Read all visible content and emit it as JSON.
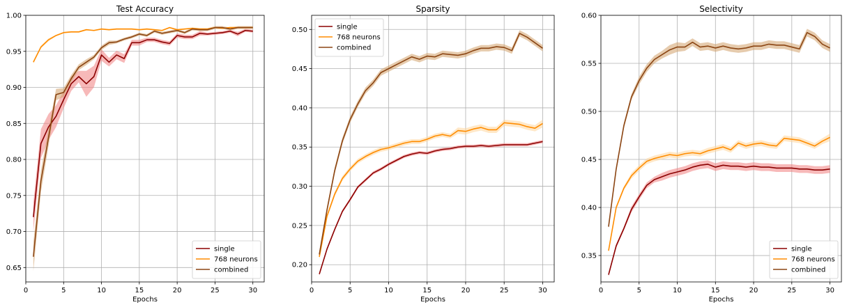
{
  "colors": {
    "single": "#8b0000",
    "neurons768": "#ff8c00",
    "combined": "#8b4513",
    "single_band": "#f08080",
    "neurons768_band": "#ffd59a",
    "combined_band": "#d2a06a",
    "grid": "#b0b0b0"
  },
  "chart_data": [
    {
      "type": "line",
      "title": "Test Accuracy",
      "xlabel": "Epochs",
      "ylabel": "",
      "xlim": [
        0,
        31.5
      ],
      "ylim": [
        0.63,
        1.0
      ],
      "xticks": [
        0,
        5,
        10,
        15,
        20,
        25,
        30
      ],
      "xtick_labels": [
        "0",
        "5",
        "10",
        "15",
        "20",
        "25",
        "30"
      ],
      "yticks": [
        0.65,
        0.7,
        0.75,
        0.8,
        0.85,
        0.9,
        0.95,
        1.0
      ],
      "ytick_labels": [
        "0.65",
        "0.70",
        "0.75",
        "0.80",
        "0.85",
        "0.90",
        "0.95",
        "1.00"
      ],
      "grid": true,
      "legend_position": "lower-right",
      "series": [
        {
          "name": "single",
          "key": "single",
          "x": [
            1,
            2,
            3,
            4,
            5,
            6,
            7,
            8,
            9,
            10,
            11,
            12,
            13,
            14,
            15,
            16,
            17,
            18,
            19,
            20,
            21,
            22,
            23,
            24,
            25,
            26,
            27,
            28,
            29,
            30
          ],
          "y": [
            0.72,
            0.822,
            0.845,
            0.86,
            0.883,
            0.905,
            0.915,
            0.905,
            0.915,
            0.945,
            0.935,
            0.945,
            0.94,
            0.962,
            0.962,
            0.966,
            0.966,
            0.963,
            0.961,
            0.972,
            0.97,
            0.97,
            0.975,
            0.974,
            0.975,
            0.976,
            0.978,
            0.974,
            0.979,
            0.978
          ],
          "band": [
            0.02,
            0.02,
            0.018,
            0.015,
            0.012,
            0.01,
            0.008,
            0.018,
            0.015,
            0.008,
            0.006,
            0.006,
            0.006,
            0.004,
            0.004,
            0.003,
            0.003,
            0.003,
            0.003,
            0.003,
            0.003,
            0.003,
            0.003,
            0.002,
            0.002,
            0.002,
            0.002,
            0.003,
            0.002,
            0.002
          ]
        },
        {
          "name": "768 neurons",
          "key": "neurons768",
          "x": [
            1,
            2,
            3,
            4,
            5,
            6,
            7,
            8,
            9,
            10,
            11,
            12,
            13,
            14,
            15,
            16,
            17,
            18,
            19,
            20,
            21,
            22,
            23,
            24,
            25,
            26,
            27,
            28,
            29,
            30
          ],
          "y": [
            0.935,
            0.956,
            0.966,
            0.972,
            0.976,
            0.977,
            0.977,
            0.98,
            0.979,
            0.981,
            0.98,
            0.981,
            0.981,
            0.981,
            0.98,
            0.981,
            0.98,
            0.979,
            0.983,
            0.98,
            0.981,
            0.982,
            0.981,
            0.981,
            0.983,
            0.982,
            0.983,
            0.983,
            0.983,
            0.983
          ],
          "band": [
            0.002,
            0.002,
            0.002,
            0.001,
            0.001,
            0.001,
            0.001,
            0.001,
            0.001,
            0.001,
            0.001,
            0.001,
            0.001,
            0.001,
            0.001,
            0.001,
            0.001,
            0.001,
            0.001,
            0.001,
            0.001,
            0.001,
            0.001,
            0.001,
            0.001,
            0.001,
            0.001,
            0.001,
            0.001,
            0.001
          ]
        },
        {
          "name": "combined",
          "key": "combined",
          "x": [
            1,
            2,
            3,
            4,
            5,
            6,
            7,
            8,
            9,
            10,
            11,
            12,
            13,
            14,
            15,
            16,
            17,
            18,
            19,
            20,
            21,
            22,
            23,
            24,
            25,
            26,
            27,
            28,
            29,
            30
          ],
          "y": [
            0.665,
            0.77,
            0.83,
            0.89,
            0.893,
            0.912,
            0.928,
            0.935,
            0.942,
            0.955,
            0.962,
            0.963,
            0.967,
            0.97,
            0.974,
            0.972,
            0.978,
            0.975,
            0.977,
            0.979,
            0.976,
            0.981,
            0.98,
            0.98,
            0.983,
            0.983,
            0.981,
            0.983,
            0.983,
            0.983
          ],
          "band": [
            0.02,
            0.015,
            0.012,
            0.008,
            0.006,
            0.005,
            0.004,
            0.004,
            0.003,
            0.003,
            0.003,
            0.002,
            0.002,
            0.002,
            0.002,
            0.002,
            0.002,
            0.002,
            0.002,
            0.002,
            0.002,
            0.002,
            0.002,
            0.002,
            0.002,
            0.002,
            0.002,
            0.002,
            0.002,
            0.002
          ]
        }
      ]
    },
    {
      "type": "line",
      "title": "Sparsity",
      "xlabel": "Epochs",
      "ylabel": "",
      "xlim": [
        0,
        31.5
      ],
      "ylim": [
        0.178,
        0.518
      ],
      "xticks": [
        0,
        5,
        10,
        15,
        20,
        25,
        30
      ],
      "xtick_labels": [
        "0",
        "5",
        "10",
        "15",
        "20",
        "25",
        "30"
      ],
      "yticks": [
        0.2,
        0.25,
        0.3,
        0.35,
        0.4,
        0.45,
        0.5
      ],
      "ytick_labels": [
        "0.20",
        "0.25",
        "0.30",
        "0.35",
        "0.40",
        "0.45",
        "0.50"
      ],
      "grid": true,
      "legend_position": "upper-left",
      "series": [
        {
          "name": "single",
          "key": "single",
          "x": [
            1,
            2,
            3,
            4,
            5,
            6,
            7,
            8,
            9,
            10,
            11,
            12,
            13,
            14,
            15,
            16,
            17,
            18,
            19,
            20,
            21,
            22,
            23,
            24,
            25,
            26,
            27,
            28,
            29,
            30
          ],
          "y": [
            0.188,
            0.22,
            0.245,
            0.268,
            0.283,
            0.299,
            0.308,
            0.317,
            0.322,
            0.328,
            0.333,
            0.338,
            0.341,
            0.343,
            0.342,
            0.345,
            0.347,
            0.348,
            0.35,
            0.351,
            0.351,
            0.352,
            0.351,
            0.352,
            0.353,
            0.353,
            0.353,
            0.353,
            0.355,
            0.357
          ],
          "band": [
            0.002,
            0.002,
            0.002,
            0.002,
            0.002,
            0.002,
            0.002,
            0.002,
            0.002,
            0.002,
            0.002,
            0.002,
            0.002,
            0.002,
            0.002,
            0.002,
            0.002,
            0.002,
            0.002,
            0.002,
            0.002,
            0.002,
            0.002,
            0.002,
            0.002,
            0.002,
            0.002,
            0.002,
            0.002,
            0.002
          ]
        },
        {
          "name": "768 neurons",
          "key": "neurons768",
          "x": [
            1,
            2,
            3,
            4,
            5,
            6,
            7,
            8,
            9,
            10,
            11,
            12,
            13,
            14,
            15,
            16,
            17,
            18,
            19,
            20,
            21,
            22,
            23,
            24,
            25,
            26,
            27,
            28,
            29,
            30
          ],
          "y": [
            0.21,
            0.262,
            0.29,
            0.31,
            0.322,
            0.332,
            0.338,
            0.343,
            0.347,
            0.349,
            0.352,
            0.355,
            0.357,
            0.357,
            0.36,
            0.364,
            0.366,
            0.364,
            0.371,
            0.37,
            0.373,
            0.375,
            0.372,
            0.372,
            0.381,
            0.38,
            0.379,
            0.376,
            0.374,
            0.38
          ],
          "band": [
            0.003,
            0.003,
            0.003,
            0.003,
            0.003,
            0.003,
            0.003,
            0.003,
            0.003,
            0.003,
            0.003,
            0.003,
            0.003,
            0.003,
            0.003,
            0.003,
            0.003,
            0.003,
            0.004,
            0.004,
            0.004,
            0.004,
            0.004,
            0.004,
            0.004,
            0.004,
            0.004,
            0.004,
            0.004,
            0.005
          ]
        },
        {
          "name": "combined",
          "key": "combined",
          "x": [
            1,
            2,
            3,
            4,
            5,
            6,
            7,
            8,
            9,
            10,
            11,
            12,
            13,
            14,
            15,
            16,
            17,
            18,
            19,
            20,
            21,
            22,
            23,
            24,
            25,
            26,
            27,
            28,
            29,
            30
          ],
          "y": [
            0.213,
            0.27,
            0.32,
            0.358,
            0.385,
            0.405,
            0.422,
            0.432,
            0.445,
            0.45,
            0.455,
            0.46,
            0.465,
            0.462,
            0.466,
            0.465,
            0.469,
            0.468,
            0.467,
            0.469,
            0.473,
            0.476,
            0.476,
            0.478,
            0.477,
            0.473,
            0.495,
            0.49,
            0.483,
            0.476
          ],
          "band": [
            0.004,
            0.004,
            0.004,
            0.004,
            0.004,
            0.004,
            0.004,
            0.004,
            0.004,
            0.004,
            0.004,
            0.004,
            0.004,
            0.004,
            0.004,
            0.004,
            0.004,
            0.004,
            0.004,
            0.004,
            0.004,
            0.004,
            0.004,
            0.004,
            0.004,
            0.004,
            0.004,
            0.004,
            0.004,
            0.004
          ]
        }
      ]
    },
    {
      "type": "line",
      "title": "Selectivity",
      "xlabel": "Epochs",
      "ylabel": "",
      "xlim": [
        0,
        31.5
      ],
      "ylim": [
        0.3225,
        0.6
      ],
      "xticks": [
        0,
        5,
        10,
        15,
        20,
        25,
        30
      ],
      "xtick_labels": [
        "0",
        "5",
        "10",
        "15",
        "20",
        "25",
        "30"
      ],
      "yticks": [
        0.35,
        0.4,
        0.45,
        0.5,
        0.55,
        0.6
      ],
      "ytick_labels": [
        "0.35",
        "0.40",
        "0.45",
        "0.50",
        "0.55",
        "0.60"
      ],
      "grid": true,
      "legend_position": "lower-right",
      "series": [
        {
          "name": "single",
          "key": "single",
          "x": [
            1,
            2,
            3,
            4,
            5,
            6,
            7,
            8,
            9,
            10,
            11,
            12,
            13,
            14,
            15,
            16,
            17,
            18,
            19,
            20,
            21,
            22,
            23,
            24,
            25,
            26,
            27,
            28,
            29,
            30
          ],
          "y": [
            0.33,
            0.36,
            0.378,
            0.398,
            0.411,
            0.423,
            0.429,
            0.432,
            0.435,
            0.437,
            0.439,
            0.442,
            0.444,
            0.445,
            0.442,
            0.444,
            0.443,
            0.443,
            0.442,
            0.443,
            0.442,
            0.442,
            0.441,
            0.441,
            0.441,
            0.44,
            0.44,
            0.439,
            0.439,
            0.44
          ],
          "band": [
            0.002,
            0.002,
            0.002,
            0.003,
            0.003,
            0.003,
            0.003,
            0.004,
            0.004,
            0.004,
            0.004,
            0.004,
            0.004,
            0.004,
            0.004,
            0.004,
            0.004,
            0.004,
            0.004,
            0.004,
            0.004,
            0.004,
            0.004,
            0.004,
            0.004,
            0.004,
            0.004,
            0.004,
            0.004,
            0.004
          ]
        },
        {
          "name": "768 neurons",
          "key": "neurons768",
          "x": [
            1,
            2,
            3,
            4,
            5,
            6,
            7,
            8,
            9,
            10,
            11,
            12,
            13,
            14,
            15,
            16,
            17,
            18,
            19,
            20,
            21,
            22,
            23,
            24,
            25,
            26,
            27,
            28,
            29,
            30
          ],
          "y": [
            0.355,
            0.4,
            0.42,
            0.433,
            0.441,
            0.448,
            0.451,
            0.453,
            0.455,
            0.454,
            0.456,
            0.457,
            0.456,
            0.459,
            0.461,
            0.463,
            0.46,
            0.467,
            0.464,
            0.466,
            0.467,
            0.465,
            0.464,
            0.472,
            0.471,
            0.47,
            0.467,
            0.464,
            0.469,
            0.473
          ],
          "band": [
            0.002,
            0.002,
            0.002,
            0.003,
            0.003,
            0.003,
            0.003,
            0.003,
            0.003,
            0.003,
            0.003,
            0.003,
            0.003,
            0.003,
            0.003,
            0.003,
            0.003,
            0.003,
            0.003,
            0.003,
            0.003,
            0.003,
            0.003,
            0.003,
            0.003,
            0.003,
            0.003,
            0.003,
            0.003,
            0.004
          ]
        },
        {
          "name": "combined",
          "key": "combined",
          "x": [
            1,
            2,
            3,
            4,
            5,
            6,
            7,
            8,
            9,
            10,
            11,
            12,
            13,
            14,
            15,
            16,
            17,
            18,
            19,
            20,
            21,
            22,
            23,
            24,
            25,
            26,
            27,
            28,
            29,
            30
          ],
          "y": [
            0.38,
            0.44,
            0.485,
            0.515,
            0.532,
            0.545,
            0.554,
            0.559,
            0.564,
            0.567,
            0.567,
            0.572,
            0.567,
            0.568,
            0.566,
            0.568,
            0.566,
            0.565,
            0.566,
            0.568,
            0.568,
            0.57,
            0.569,
            0.569,
            0.567,
            0.565,
            0.582,
            0.578,
            0.57,
            0.566
          ],
          "band": [
            0.002,
            0.003,
            0.003,
            0.003,
            0.004,
            0.004,
            0.004,
            0.004,
            0.005,
            0.005,
            0.004,
            0.004,
            0.004,
            0.004,
            0.004,
            0.004,
            0.004,
            0.004,
            0.004,
            0.004,
            0.004,
            0.004,
            0.004,
            0.004,
            0.004,
            0.004,
            0.004,
            0.004,
            0.004,
            0.004
          ]
        }
      ]
    }
  ]
}
